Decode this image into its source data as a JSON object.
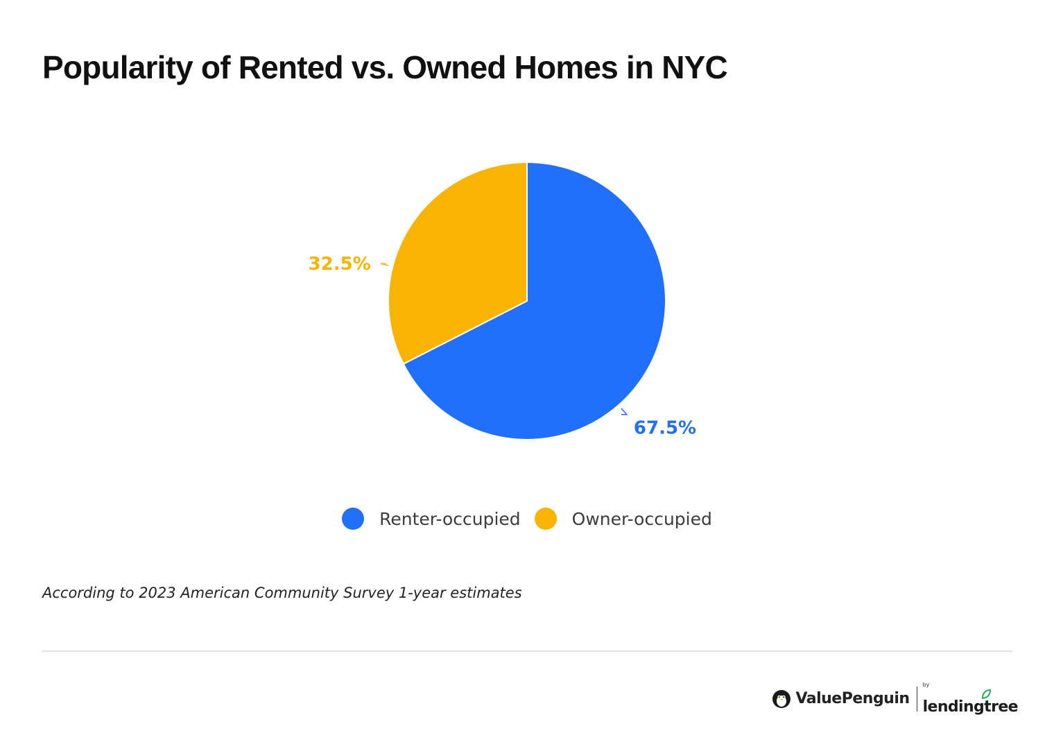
{
  "title": "Popularity of Rented vs. Owned Homes in NYC",
  "note": "According to 2023 American Community Survey 1-year estimates",
  "brand": {
    "name": "ValuePenguin",
    "by": "by",
    "partner": "lendingtree",
    "icon": "penguin-icon",
    "leaf_icon": "leaf-icon",
    "leaf_color": "#1fb25a"
  },
  "chart_data": {
    "type": "pie",
    "title": "Popularity of Rented vs. Owned Homes in NYC",
    "start_angle_deg": 0,
    "direction": "clockwise",
    "legend_position": "bottom",
    "slices": [
      {
        "name": "Renter-occupied",
        "value": 67.5,
        "label": "67.5%",
        "color": "#2170fc"
      },
      {
        "name": "Owner-occupied",
        "value": 32.5,
        "label": "32.5%",
        "color": "#f8b400"
      }
    ]
  },
  "legend": [
    {
      "label": "Renter-occupied",
      "color": "#2170fc"
    },
    {
      "label": "Owner-occupied",
      "color": "#f8b400"
    }
  ]
}
